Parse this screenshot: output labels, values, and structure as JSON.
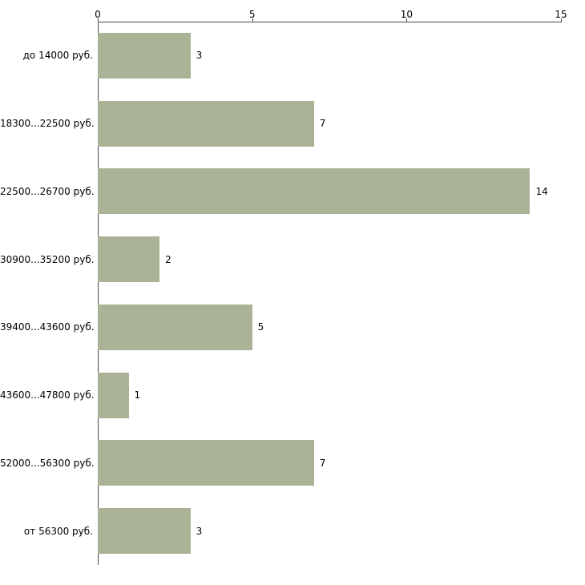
{
  "chart_data": {
    "type": "bar",
    "orientation": "horizontal",
    "title": "",
    "xlabel": "",
    "ylabel": "",
    "categories": [
      "до 14000 руб.",
      "18300...22500 руб.",
      "22500...26700 руб.",
      "30900...35200 руб.",
      "39400...43600 руб.",
      "43600...47800 руб.",
      "52000...56300 руб.",
      "от 56300 руб."
    ],
    "values": [
      3,
      7,
      14,
      2,
      5,
      1,
      7,
      3
    ],
    "value_labels": [
      "3",
      "7",
      "14",
      "2",
      "5",
      "1",
      "7",
      "3"
    ],
    "xlim": [
      0,
      15
    ],
    "xticks": [
      0,
      5,
      10,
      15
    ],
    "axis_position": "top",
    "grid": false,
    "legend": false,
    "bar_color": "#abb396",
    "axis_color": "#4a4a4a",
    "text_color": "#000000",
    "background": "#ffffff"
  }
}
